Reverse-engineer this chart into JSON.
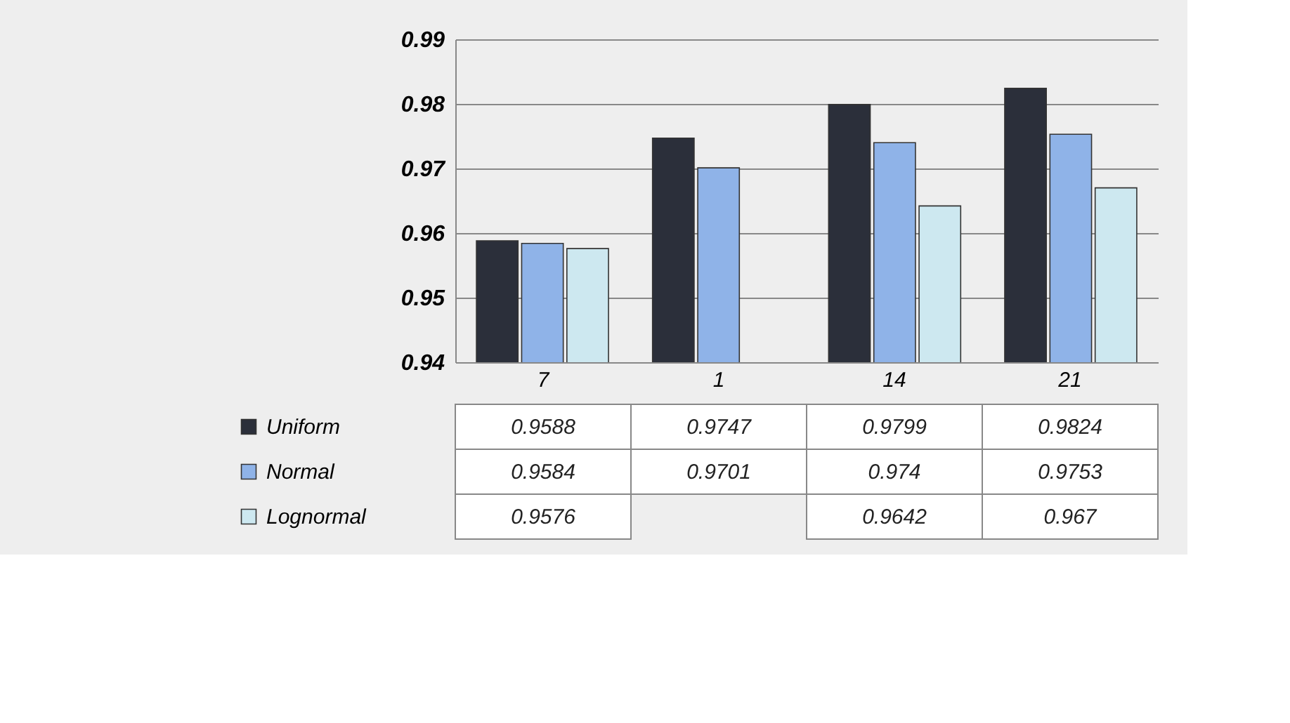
{
  "chart_data": {
    "type": "bar",
    "categories": [
      "7",
      "1",
      "14",
      "21"
    ],
    "series": [
      {
        "name": "Uniform",
        "color": "#2b2f3a",
        "values": [
          0.9588,
          0.9747,
          0.9799,
          0.9824
        ]
      },
      {
        "name": "Normal",
        "color": "#8fb3e8",
        "values": [
          0.9584,
          0.9701,
          0.974,
          0.9753
        ]
      },
      {
        "name": "Lognormal",
        "color": "#cde8f0",
        "values": [
          0.9576,
          null,
          0.9642,
          0.967
        ]
      }
    ],
    "ylim": [
      0.94,
      0.99
    ],
    "yticks": [
      0.94,
      0.95,
      0.96,
      0.97,
      0.98,
      0.99
    ],
    "grid": "y",
    "data_labels": true,
    "legend": "bottom"
  }
}
